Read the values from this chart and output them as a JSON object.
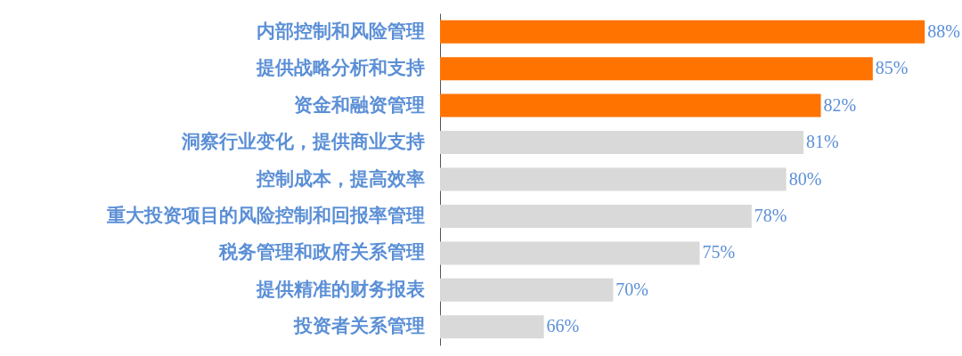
{
  "chart_data": {
    "type": "bar",
    "orientation": "horizontal",
    "categories": [
      "内部控制和风险管理",
      "提供战略分析和支持",
      "资金和融资管理",
      "洞察行业变化，提供商业支持",
      "控制成本，提高效率",
      "重大投资项目的风险控制和回报率管理",
      "税务管理和政府关系管理",
      "提供精准的财务报表",
      "投资者关系管理"
    ],
    "values": [
      88,
      85,
      82,
      81,
      80,
      78,
      75,
      70,
      66
    ],
    "colors": [
      "#ff7300",
      "#ff7300",
      "#ff7300",
      "#d9d9d9",
      "#d9d9d9",
      "#d9d9d9",
      "#d9d9d9",
      "#d9d9d9",
      "#d9d9d9"
    ],
    "value_labels": [
      "88%",
      "85%",
      "82%",
      "81%",
      "80%",
      "78%",
      "75%",
      "70%",
      "66%"
    ],
    "xlim": [
      60,
      90
    ],
    "tick_labels": "y",
    "grid": false
  }
}
